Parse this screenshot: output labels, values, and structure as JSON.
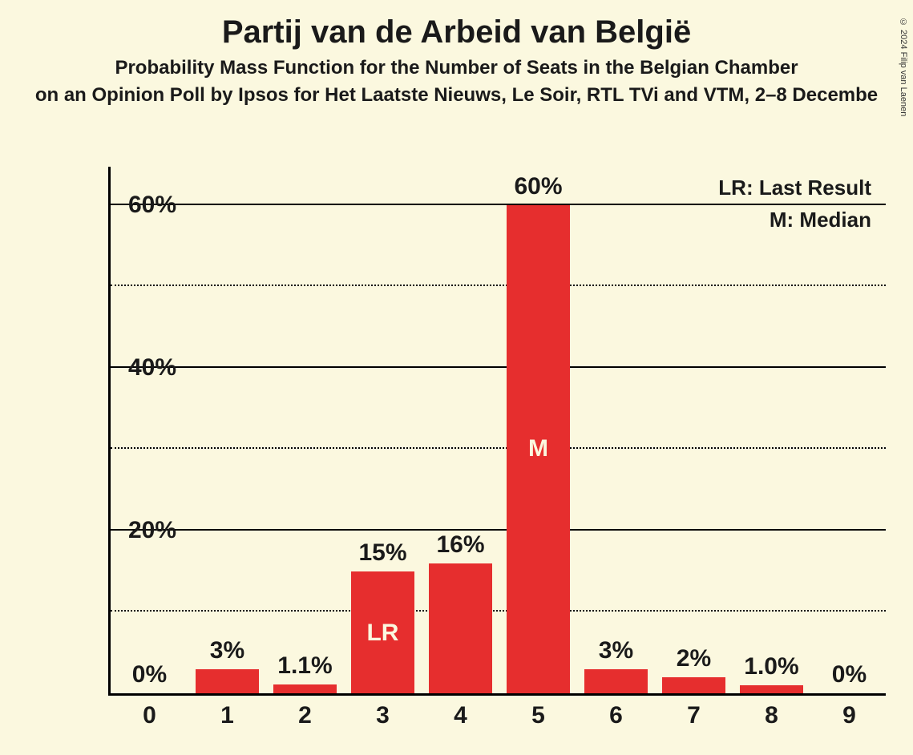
{
  "title": "Partij van de Arbeid van België",
  "subtitle": "Probability Mass Function for the Number of Seats in the Belgian Chamber",
  "subtitle2": "on an Opinion Poll by Ipsos for Het Laatste Nieuws, Le Soir, RTL TVi and VTM, 2–8 Decembe",
  "copyright": "© 2024 Filip van Laenen",
  "chart": {
    "type": "bar",
    "background_color": "#fbf8df",
    "bar_color": "#e62e2e",
    "text_color": "#1a1a1a",
    "axis_color": "#000000",
    "marker_text_color": "#fbf8df",
    "ylim": [
      0,
      65
    ],
    "y_major_ticks": [
      20,
      40,
      60
    ],
    "y_minor_ticks": [
      10,
      30,
      50
    ],
    "y_tick_labels": [
      "20%",
      "40%",
      "60%"
    ],
    "bar_width_ratio": 0.82,
    "title_fontsize": 40,
    "subtitle_fontsize": 24,
    "axis_label_fontsize": 30,
    "value_label_fontsize": 30,
    "legend_fontsize": 26,
    "categories": [
      "0",
      "1",
      "2",
      "3",
      "4",
      "5",
      "6",
      "7",
      "8",
      "9"
    ],
    "values": [
      0,
      3,
      1.1,
      15,
      16,
      60,
      3,
      2,
      1.0,
      0
    ],
    "value_labels": [
      "0%",
      "3%",
      "1.1%",
      "15%",
      "16%",
      "60%",
      "3%",
      "2%",
      "1.0%",
      "0%"
    ],
    "markers": {
      "3": "LR",
      "5": "M"
    },
    "legend": {
      "LR": "Last Result",
      "M": "Median"
    }
  }
}
